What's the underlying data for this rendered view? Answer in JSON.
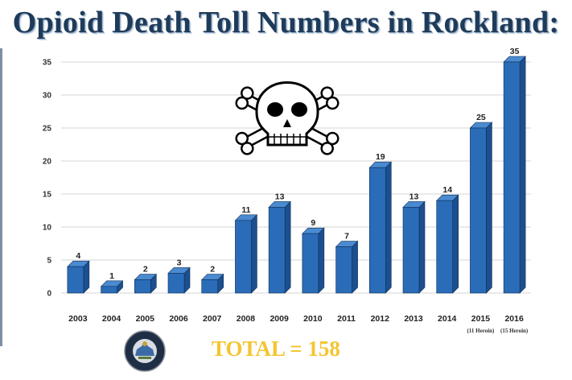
{
  "title": "Opioid Death Toll Numbers in Rockland:",
  "total_text": "TOTAL = 158",
  "seal": {
    "icon": "new-york-state-senate-seal-icon",
    "text_top": "NEW YORK STATE",
    "text_bottom": "SENATE"
  },
  "skull_icon": "skull-and-crossbones-icon",
  "colors": {
    "bar_front": "#2a6cb8",
    "bar_side": "#1c4f8f",
    "bar_top": "#4a8ad0",
    "title": "#1f3b5a",
    "total": "#f4c531"
  },
  "chart_data": {
    "type": "bar",
    "categories": [
      "2003",
      "2004",
      "2005",
      "2006",
      "2007",
      "2008",
      "2009",
      "2010",
      "2011",
      "2012",
      "2013",
      "2014",
      "2015",
      "2016"
    ],
    "values": [
      4,
      1,
      2,
      3,
      2,
      11,
      13,
      9,
      7,
      19,
      13,
      14,
      25,
      35
    ],
    "data_labels": [
      "4",
      "1",
      "2",
      "3",
      "2",
      "11",
      "13",
      "9",
      "7",
      "19",
      "13",
      "14",
      "25",
      "35"
    ],
    "category_notes": {
      "2015": "(11 Heroin)",
      "2016": "(15 Heroin)"
    },
    "ylim": [
      0,
      35
    ],
    "yticks": [
      0,
      5,
      10,
      15,
      20,
      25,
      30,
      35
    ],
    "grid": true,
    "style": "3d-bar"
  }
}
